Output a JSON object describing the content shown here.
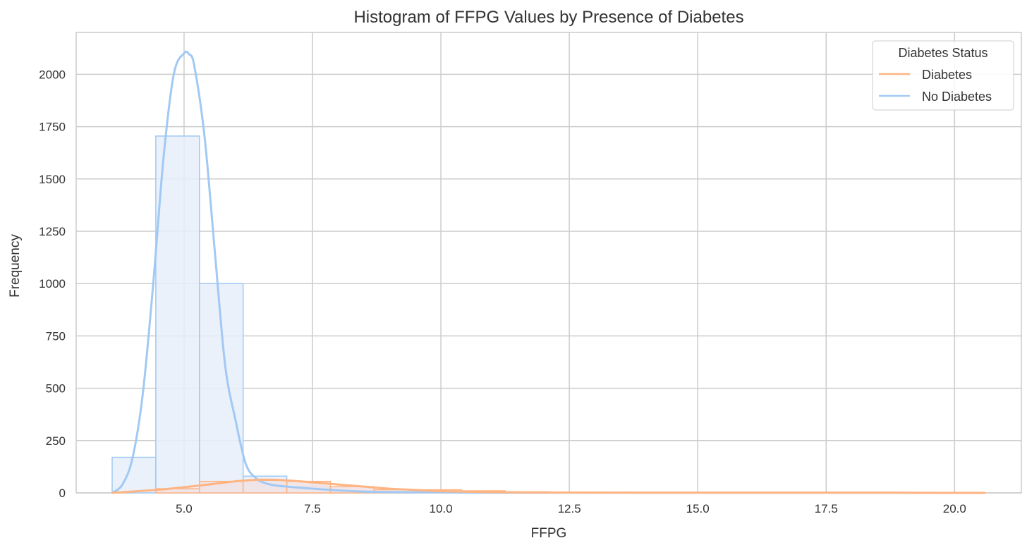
{
  "chart_data": {
    "type": "bar",
    "subtype": "histogram-step-with-kde",
    "title": "Histogram of FFPG Values by Presence of Diabetes",
    "xlabel": "FFPG",
    "ylabel": "Frequency",
    "xlim": [
      2.9,
      21.3
    ],
    "ylim": [
      0,
      2200
    ],
    "xticks": [
      5.0,
      7.5,
      10.0,
      12.5,
      15.0,
      17.5,
      20.0
    ],
    "xtick_labels": [
      "5.0",
      "7.5",
      "10.0",
      "12.5",
      "15.0",
      "17.5",
      "20.0"
    ],
    "yticks": [
      0,
      250,
      500,
      750,
      1000,
      1250,
      1500,
      1750,
      2000
    ],
    "ytick_labels": [
      "0",
      "250",
      "500",
      "750",
      "1000",
      "1250",
      "1500",
      "1750",
      "2000"
    ],
    "grid": true,
    "legend": {
      "title": "Diabetes Status",
      "placement": "top-right",
      "entries": [
        "Diabetes",
        "No Diabetes"
      ]
    },
    "bin_edges": [
      3.6,
      4.45,
      5.3,
      6.15,
      7.0,
      7.85,
      8.7,
      9.55,
      10.4,
      11.25,
      12.1,
      12.95,
      13.8,
      14.65,
      15.5,
      16.35,
      17.2,
      18.05,
      18.9,
      19.75,
      20.6
    ],
    "series": [
      {
        "name": "No Diabetes",
        "color": "#a1c9f4",
        "fill": "#e6eefa",
        "counts": [
          170,
          1705,
          1000,
          80,
          30,
          10,
          4,
          2,
          1,
          1,
          1,
          1,
          1,
          1,
          1,
          1,
          0,
          0,
          0,
          0
        ],
        "kde": {
          "x": [
            3.6,
            3.8,
            4.0,
            4.2,
            4.4,
            4.6,
            4.8,
            5.0,
            5.1,
            5.2,
            5.4,
            5.6,
            5.8,
            6.0,
            6.2,
            6.4,
            6.6,
            6.8,
            7.0,
            7.5,
            8.0,
            8.5,
            9.0,
            10.0,
            11.0,
            12.0,
            14.0,
            16.0,
            18.0,
            20.6
          ],
          "y": [
            0,
            40,
            170,
            480,
            1000,
            1600,
            2000,
            2100,
            2095,
            2040,
            1700,
            1150,
            610,
            350,
            140,
            70,
            45,
            35,
            30,
            20,
            12,
            6,
            4,
            2,
            1,
            1,
            1,
            1,
            1,
            0
          ]
        }
      },
      {
        "name": "Diabetes",
        "color": "#ffb482",
        "fill": "#f0e2e4",
        "counts": [
          0,
          20,
          55,
          60,
          55,
          30,
          15,
          15,
          10,
          5,
          3,
          2,
          2,
          2,
          1,
          1,
          1,
          0,
          0,
          0
        ],
        "kde": {
          "x": [
            3.6,
            4.5,
            5.3,
            6.0,
            6.5,
            7.0,
            7.5,
            8.0,
            8.5,
            9.0,
            9.5,
            10.0,
            11.0,
            12.0,
            14.0,
            16.0,
            18.0,
            20.6
          ],
          "y": [
            0,
            15,
            35,
            55,
            63,
            60,
            50,
            40,
            30,
            20,
            14,
            8,
            4,
            2,
            1,
            1,
            1,
            0
          ]
        }
      }
    ]
  }
}
